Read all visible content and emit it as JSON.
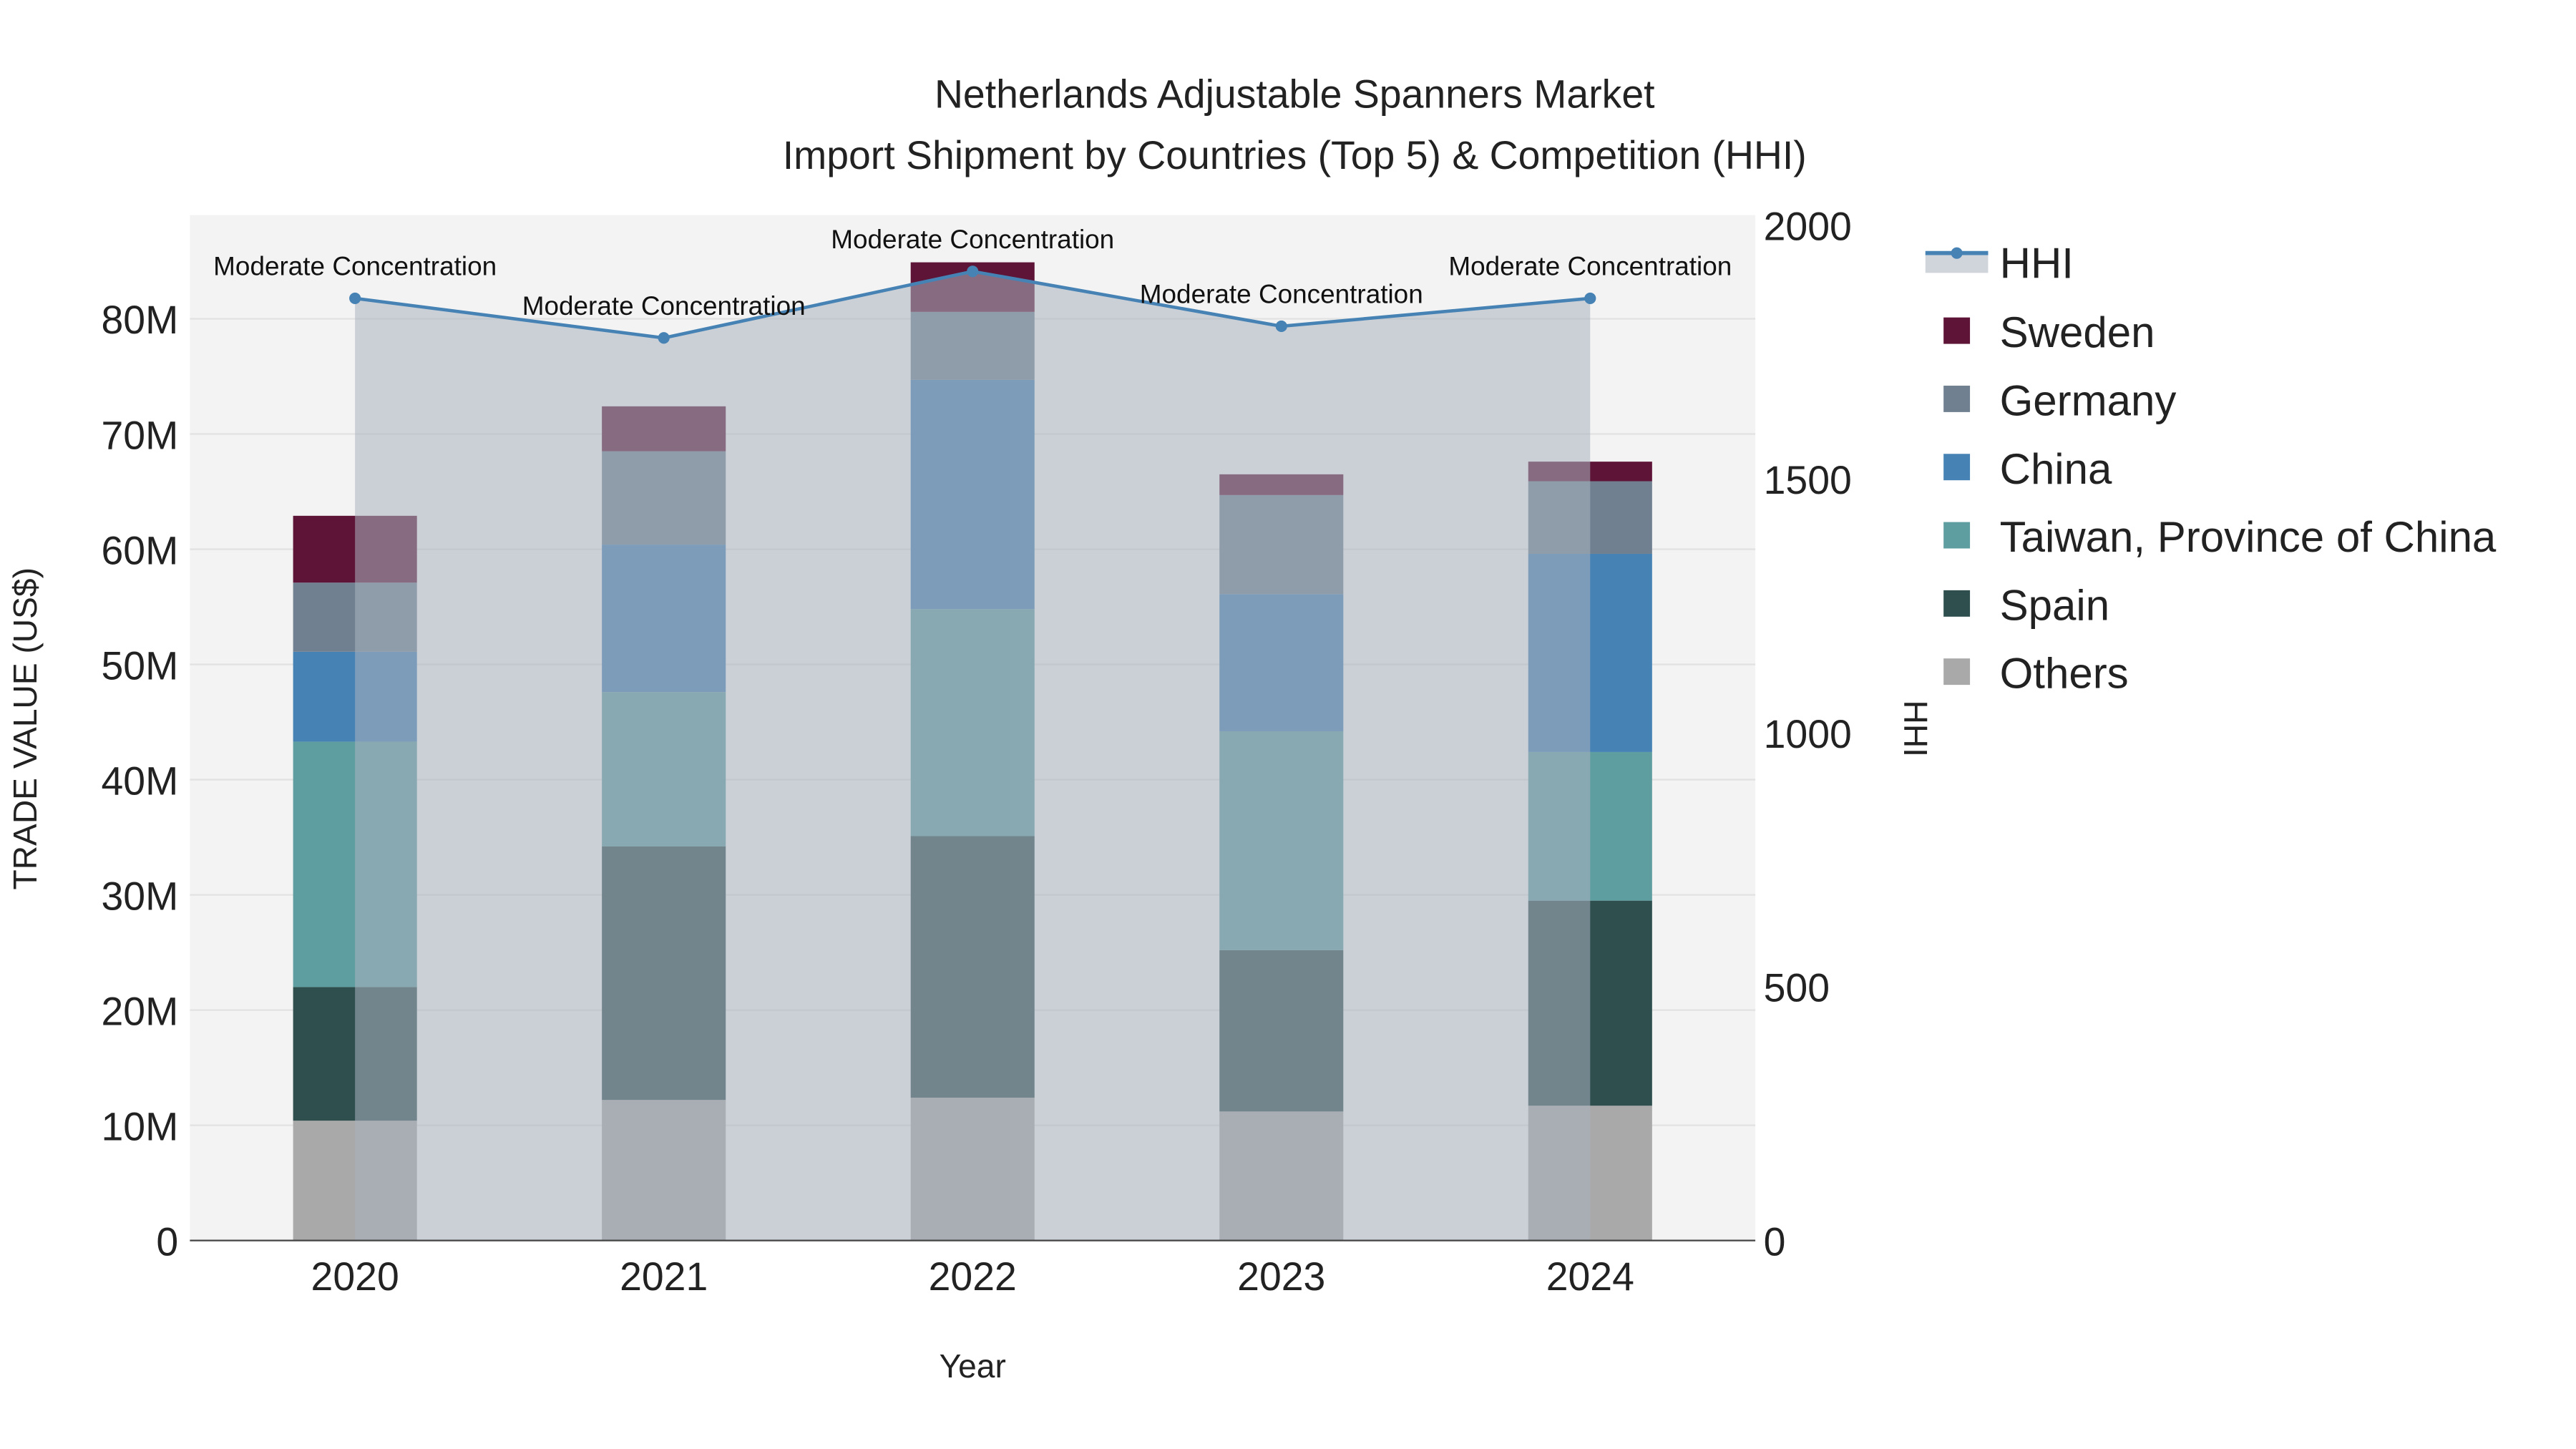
{
  "chart_data": {
    "type": "bar",
    "title_line1": "Netherlands Adjustable Spanners Market",
    "title_line2": "Import Shipment by Countries (Top 5) & Competition (HHI)",
    "xlabel": "Year",
    "ylabel": "TRADE VALUE (US$)",
    "y2label": "HHI",
    "categories": [
      "2020",
      "2021",
      "2022",
      "2023",
      "2024"
    ],
    "ylim": [
      0,
      89000000
    ],
    "y_ticks": [
      0,
      10000000,
      20000000,
      30000000,
      40000000,
      50000000,
      60000000,
      70000000,
      80000000
    ],
    "y_tick_labels": [
      "0",
      "10M",
      "20M",
      "30M",
      "40M",
      "50M",
      "60M",
      "70M",
      "80M"
    ],
    "y2lim": [
      0,
      2020
    ],
    "y2_ticks": [
      0,
      500,
      1000,
      1500,
      2000
    ],
    "y2_tick_labels": [
      "0",
      "500",
      "1000",
      "1500",
      "2000"
    ],
    "stacking": "stacked",
    "series": [
      {
        "name": "Others",
        "color": "#a9a9a9",
        "values": [
          10400000,
          12200000,
          12400000,
          11200000,
          11700000
        ]
      },
      {
        "name": "Spain",
        "color": "#2f4f4f",
        "values": [
          11600000,
          22000000,
          22700000,
          14000000,
          17800000
        ]
      },
      {
        "name": "Taiwan, Province of China",
        "color": "#5f9ea0",
        "values": [
          21300000,
          13400000,
          19700000,
          19000000,
          12900000
        ]
      },
      {
        "name": "China",
        "color": "#4682b4",
        "values": [
          7800000,
          12800000,
          19900000,
          11900000,
          17200000
        ]
      },
      {
        "name": "Germany",
        "color": "#708090",
        "values": [
          6000000,
          8100000,
          5900000,
          8600000,
          6300000
        ]
      },
      {
        "name": "Sweden",
        "color": "#5e1437",
        "values": [
          5800000,
          3900000,
          4300000,
          1800000,
          1700000
        ]
      }
    ],
    "hhi": {
      "name": "HHI",
      "color": "#4682b4",
      "values": [
        1856,
        1778,
        1909,
        1801,
        1856
      ],
      "annotations": [
        "Moderate Concentration",
        "Moderate Concentration",
        "Moderate Concentration",
        "Moderate Concentration",
        "Moderate Concentration"
      ]
    },
    "legend_order": [
      "HHI",
      "Sweden",
      "Germany",
      "China",
      "Taiwan, Province of China",
      "Spain",
      "Others"
    ],
    "legend_placement": "right",
    "grid": true
  }
}
